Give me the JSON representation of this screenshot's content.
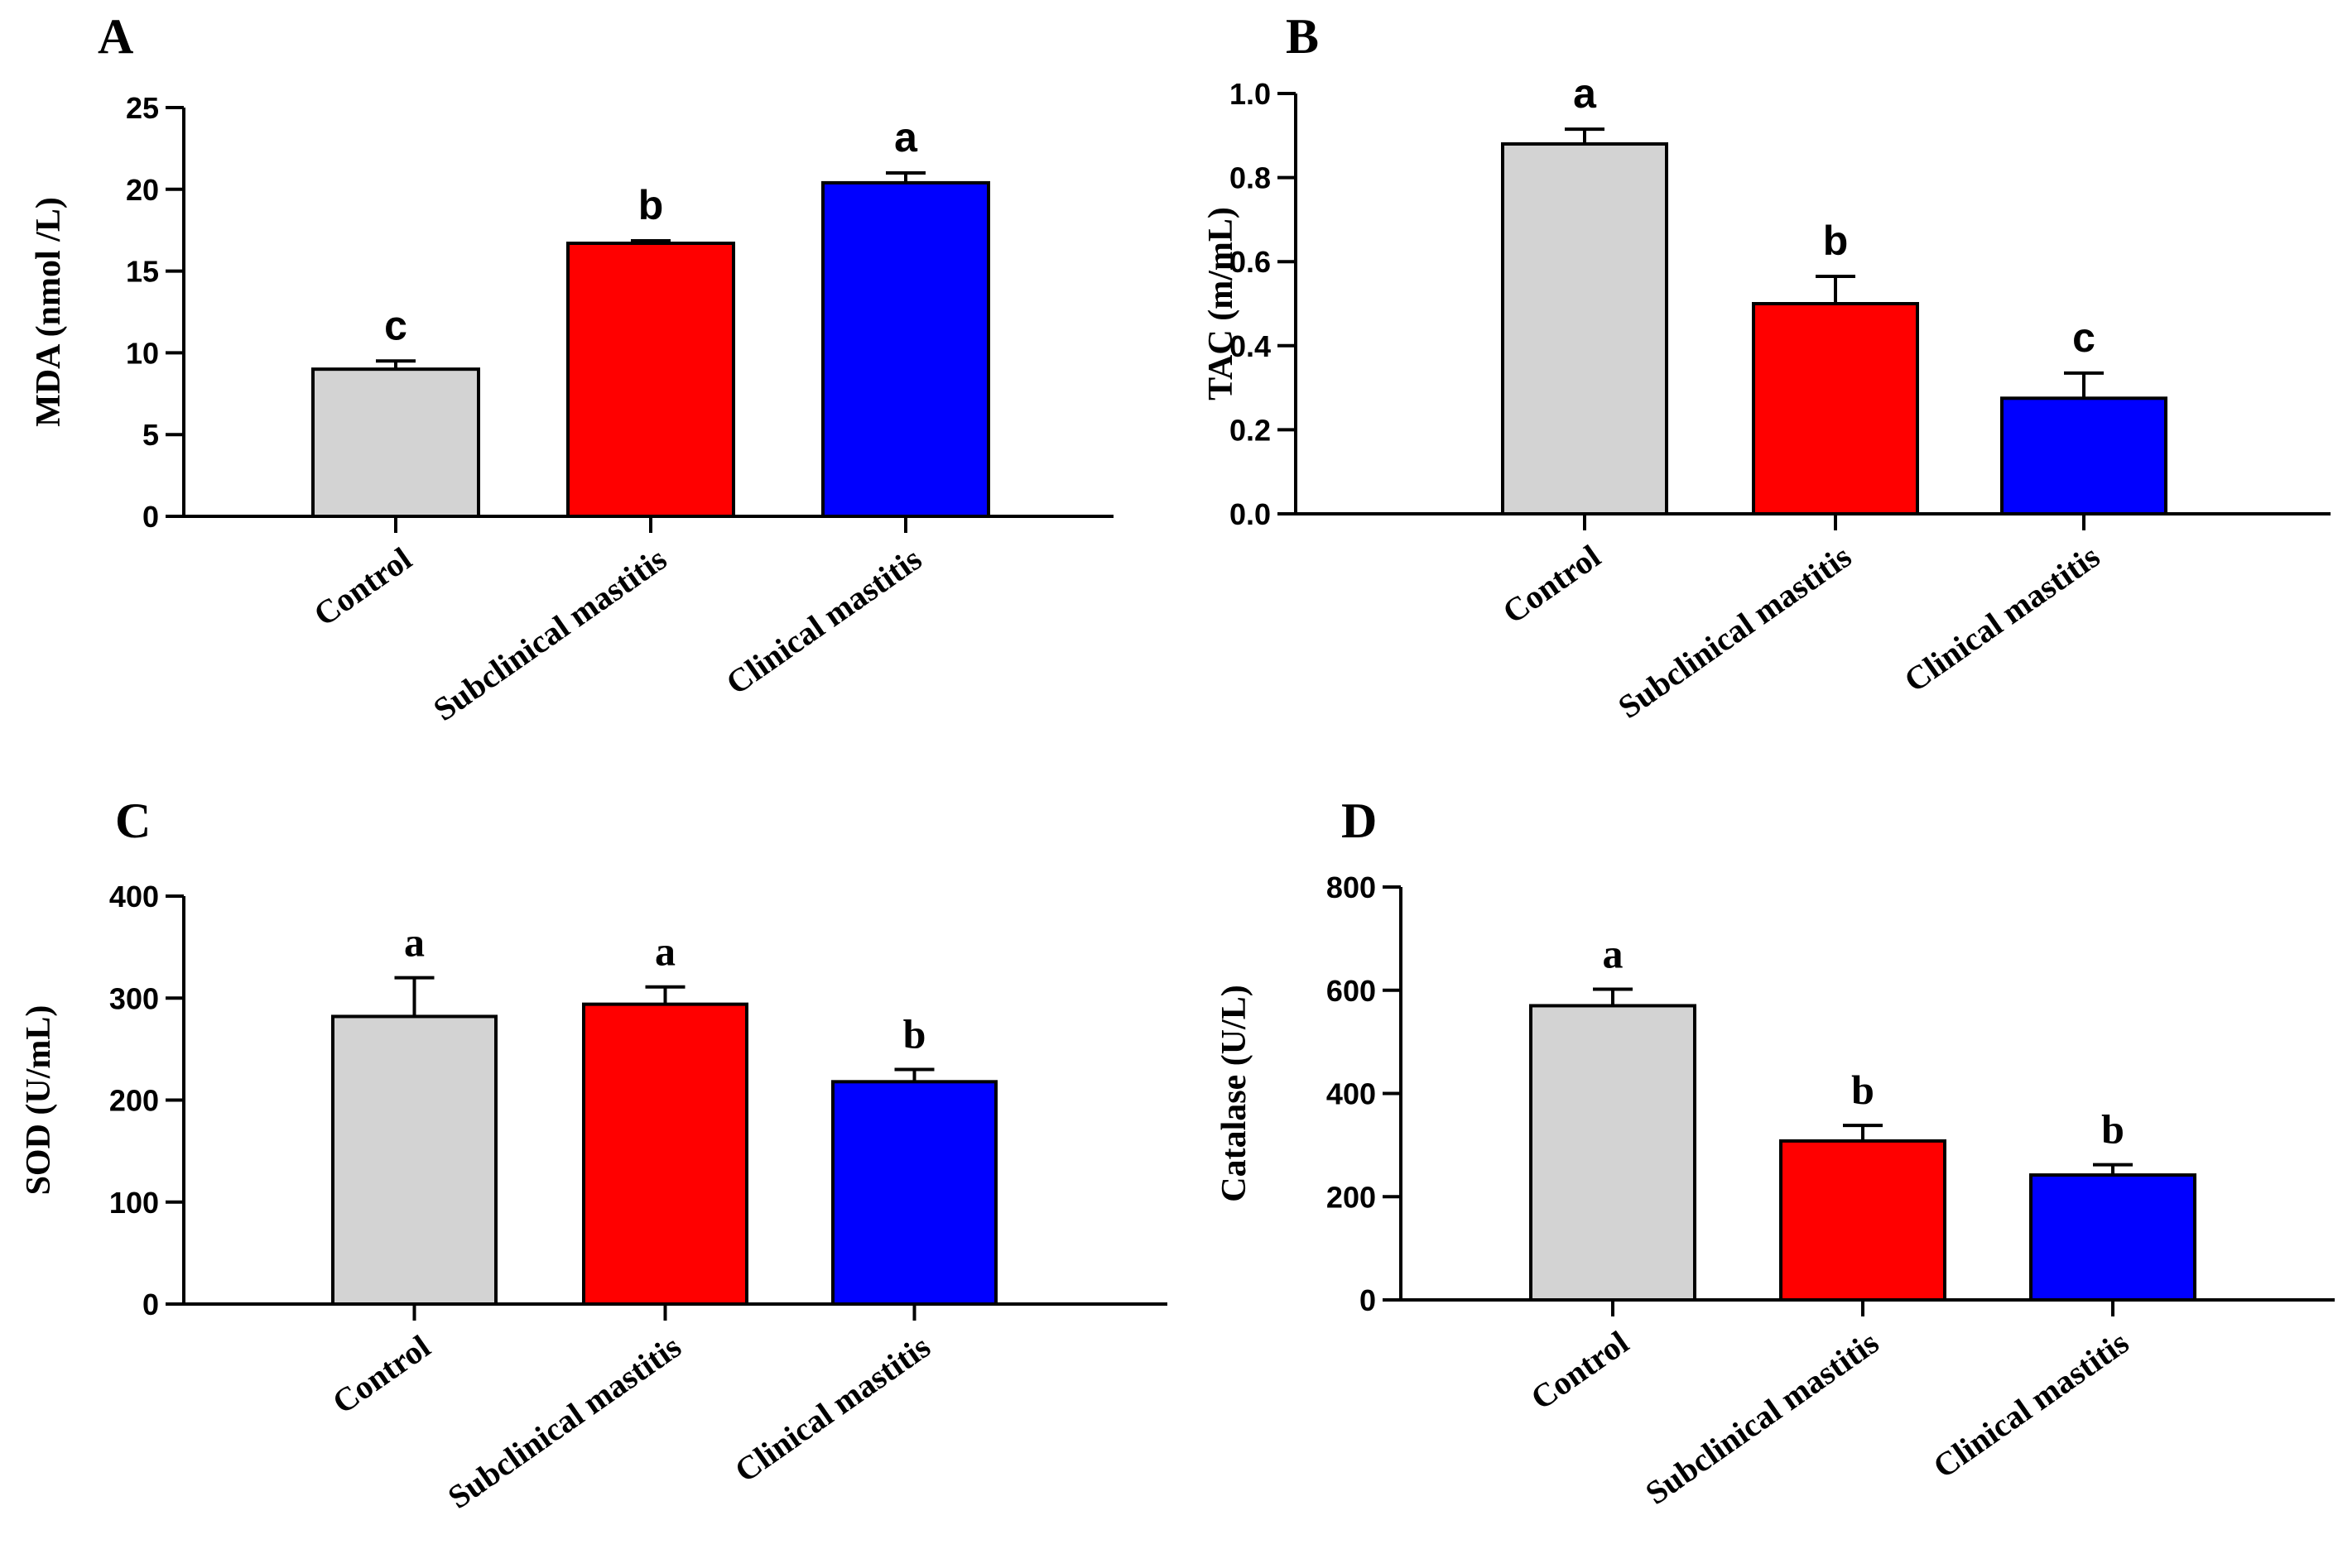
{
  "panel_letters": [
    "A",
    "B",
    "C",
    "D"
  ],
  "colors": {
    "control": "#d3d3d3",
    "subclinical": "#ff0000",
    "clinical": "#0000ff",
    "axis": "#000000"
  },
  "chart_data": [
    {
      "type": "bar",
      "panel": "A",
      "categories": [
        "Control",
        "Subclinical mastitis",
        "Clinical mastitis"
      ],
      "values": [
        9.0,
        16.7,
        20.4
      ],
      "errors": [
        0.5,
        0.15,
        0.6
      ],
      "significance": [
        "c",
        "b",
        "a"
      ],
      "ylabel": "MDA (nmol /L)",
      "ylim": [
        0,
        25
      ],
      "yticks": [
        "0",
        "5",
        "10",
        "15",
        "20",
        "25"
      ]
    },
    {
      "type": "bar",
      "panel": "B",
      "categories": [
        "Control",
        "Subclinical mastitis",
        "Clinical mastitis"
      ],
      "values": [
        0.88,
        0.5,
        0.275
      ],
      "errors": [
        0.035,
        0.065,
        0.06
      ],
      "significance": [
        "a",
        "b",
        "c"
      ],
      "ylabel": "TAC (m/mL)",
      "ylim": [
        0,
        1.0
      ],
      "yticks": [
        "0.0",
        "0.2",
        "0.4",
        "0.6",
        "0.8",
        "1.0"
      ]
    },
    {
      "type": "bar",
      "panel": "C",
      "categories": [
        "Control",
        "Subclinical mastitis",
        "Clinical mastitis"
      ],
      "values": [
        282,
        294,
        218
      ],
      "errors": [
        38,
        17,
        12
      ],
      "significance": [
        "a",
        "a",
        "b"
      ],
      "ylabel": "SOD (U/mL)",
      "ylim": [
        0,
        400
      ],
      "yticks": [
        "0",
        "100",
        "200",
        "300",
        "400"
      ]
    },
    {
      "type": "bar",
      "panel": "D",
      "categories": [
        "Control",
        "Subclinical mastitis",
        "Clinical mastitis"
      ],
      "values": [
        570,
        308,
        242
      ],
      "errors": [
        32,
        30,
        20
      ],
      "significance": [
        "a",
        "b",
        "b"
      ],
      "ylabel": "Catalase (U/L)",
      "ylim": [
        0,
        800
      ],
      "yticks": [
        "0",
        "200",
        "400",
        "600",
        "800"
      ]
    }
  ]
}
